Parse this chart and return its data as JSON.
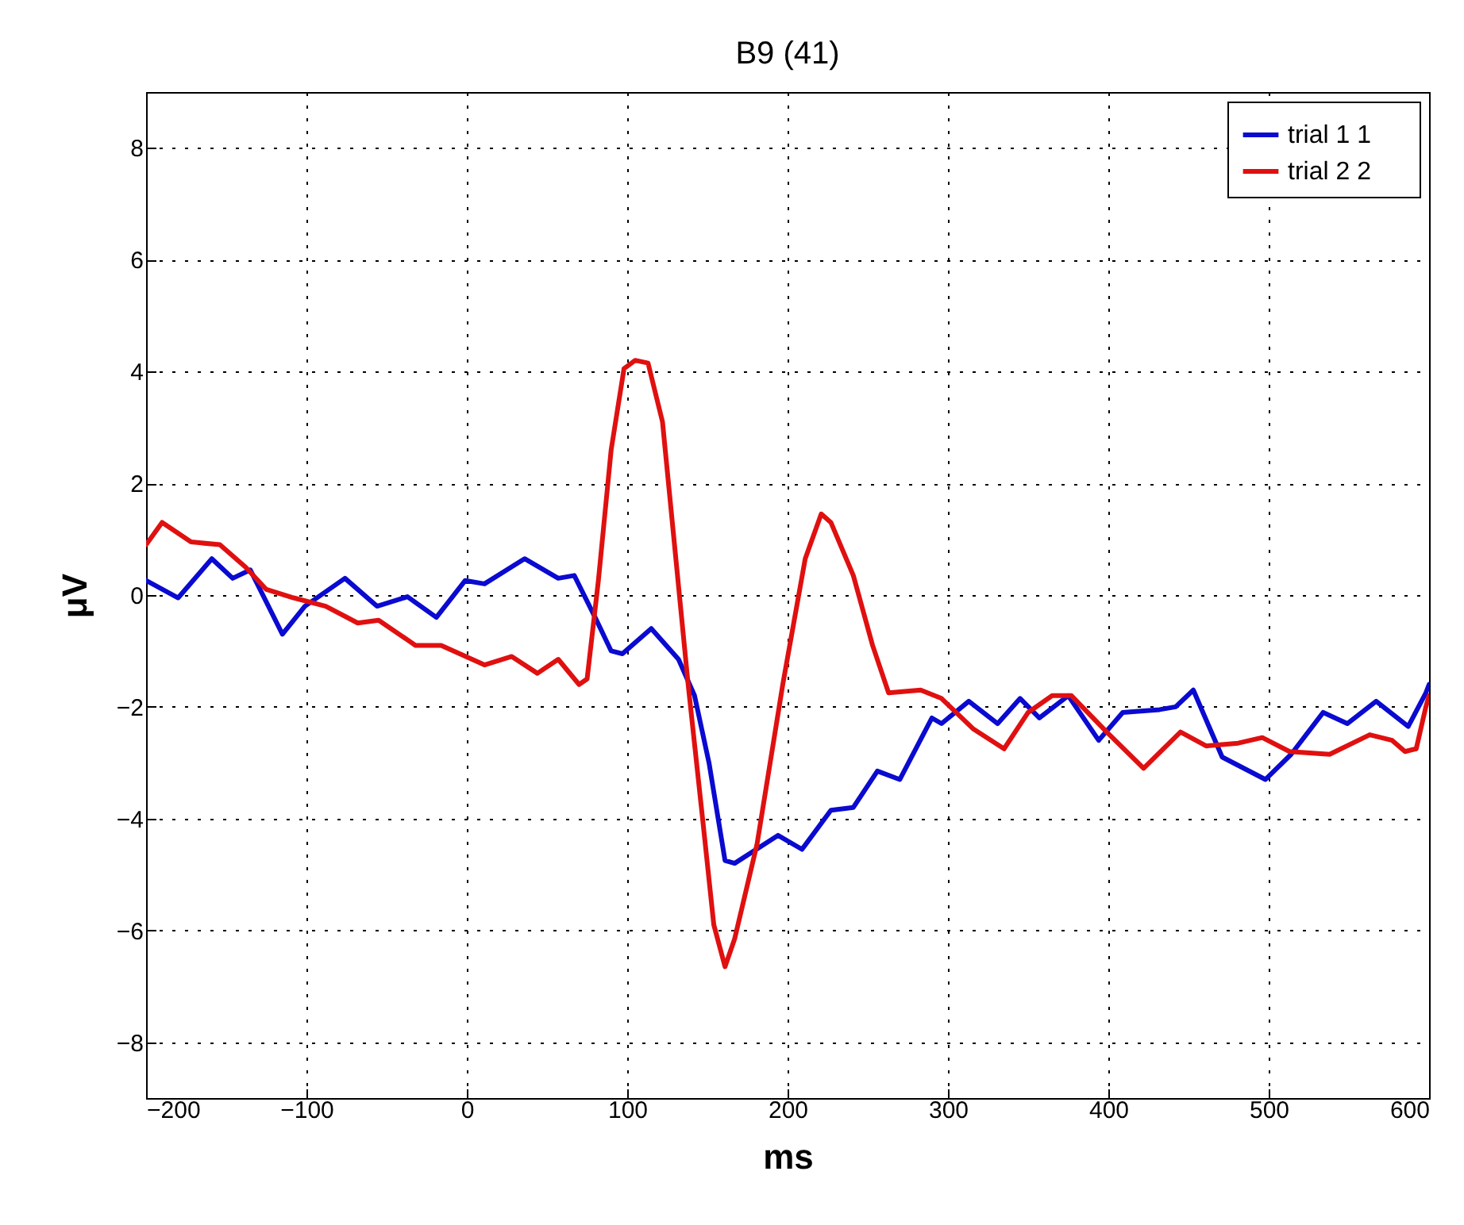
{
  "chart_data": {
    "type": "line",
    "title": "B9 (41)",
    "xlabel": "ms",
    "ylabel": "μV",
    "xlim": [
      -200,
      600
    ],
    "ylim": [
      -9,
      9
    ],
    "xticks": [
      -200,
      -100,
      0,
      100,
      200,
      300,
      400,
      500,
      600
    ],
    "yticks": [
      -8,
      -6,
      -4,
      -2,
      0,
      2,
      4,
      6,
      8
    ],
    "grid": true,
    "legend": "top right",
    "line_style": "solid",
    "marker": "none",
    "series": [
      {
        "name": "trial 1      1",
        "color": "#0a0ad0",
        "x": [
          -200,
          -180,
          -159,
          -146,
          -135,
          -115,
          -101,
          -76,
          -56,
          -37,
          -19,
          -1,
          11,
          36,
          57,
          67,
          80,
          90,
          97,
          115,
          132,
          142,
          151,
          161,
          167,
          194,
          209,
          227,
          241,
          256,
          270,
          290,
          296,
          313,
          331,
          345,
          357,
          375,
          394,
          409,
          432,
          442,
          453,
          471,
          498,
          514,
          534,
          549,
          567,
          587,
          598,
          600
        ],
        "values": [
          0.26,
          -0.05,
          0.65,
          0.3,
          0.45,
          -0.7,
          -0.2,
          0.3,
          -0.2,
          -0.03,
          -0.4,
          0.26,
          0.2,
          0.65,
          0.3,
          0.35,
          -0.4,
          -1.0,
          -1.05,
          -0.6,
          -1.15,
          -1.8,
          -3.0,
          -4.75,
          -4.8,
          -4.3,
          -4.55,
          -3.85,
          -3.8,
          -3.15,
          -3.3,
          -2.2,
          -2.3,
          -1.9,
          -2.3,
          -1.85,
          -2.2,
          -1.8,
          -2.6,
          -2.1,
          -2.05,
          -2.0,
          -1.7,
          -2.9,
          -3.3,
          -2.85,
          -2.1,
          -2.3,
          -1.9,
          -2.35,
          -1.75,
          -1.6
        ]
      },
      {
        "name": "trial 2      2",
        "color": "#e01010",
        "x": [
          -200,
          -190,
          -172,
          -154,
          -138,
          -125,
          -108,
          -88,
          -68,
          -55,
          -32,
          -16,
          11,
          28,
          44,
          57,
          70,
          75,
          82,
          90,
          98,
          105,
          113,
          122,
          130,
          138,
          147,
          154,
          161,
          167,
          181,
          197,
          211,
          221,
          227,
          241,
          253,
          263,
          283,
          296,
          316,
          335,
          350,
          365,
          377,
          399,
          422,
          445,
          461,
          481,
          496,
          513,
          538,
          563,
          577,
          585,
          592,
          598,
          600
        ],
        "values": [
          0.9,
          1.3,
          0.95,
          0.9,
          0.5,
          0.1,
          -0.05,
          -0.2,
          -0.5,
          -0.45,
          -0.9,
          -0.9,
          -1.25,
          -1.1,
          -1.4,
          -1.15,
          -1.6,
          -1.5,
          0.25,
          2.6,
          4.05,
          4.2,
          4.15,
          3.1,
          0.75,
          -1.6,
          -4.0,
          -5.9,
          -6.65,
          -6.15,
          -4.45,
          -1.6,
          0.65,
          1.45,
          1.3,
          0.35,
          -0.9,
          -1.75,
          -1.7,
          -1.85,
          -2.4,
          -2.75,
          -2.1,
          -1.8,
          -1.8,
          -2.45,
          -3.1,
          -2.45,
          -2.7,
          -2.65,
          -2.55,
          -2.8,
          -2.85,
          -2.5,
          -2.6,
          -2.8,
          -2.75,
          -2.0,
          -1.8
        ]
      }
    ]
  }
}
